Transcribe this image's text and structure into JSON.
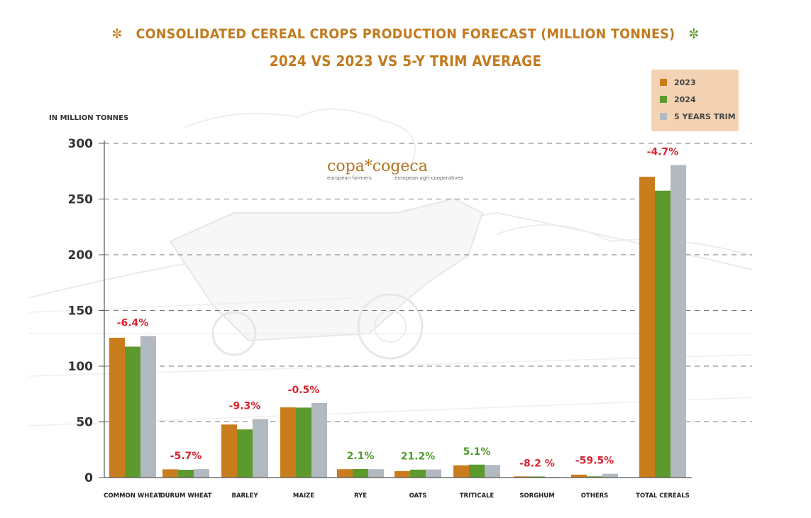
{
  "header": {
    "title_line1": "CONSOLIDATED CEREAL CROPS PRODUCTION FORECAST (MILLION TONNES)",
    "title_line2": "2024 VS 2023 VS 5-Y TRIM AVERAGE"
  },
  "logo": {
    "word1": "copa",
    "word2": "cogeca",
    "sub1": "european farmers",
    "sub2": "european agri-cooperatives"
  },
  "colors": {
    "y2023": "#c97c1c",
    "y2024": "#5c9a2e",
    "trim": "#b3b9c0",
    "negative": "#d8242f",
    "positive": "#4f9c2c",
    "title": "#c27a1e"
  },
  "chart_data": {
    "type": "bar",
    "ylabel": "IN MILLION TONNES",
    "ylim": [
      0,
      300
    ],
    "yticks": [
      0,
      50,
      100,
      150,
      200,
      250,
      300
    ],
    "grid": true,
    "legend_position": "top-right",
    "categories": [
      "COMMON WHEAT",
      "DURUM WHEAT",
      "BARLEY",
      "MAIZE",
      "RYE",
      "OATS",
      "TRITICALE",
      "SORGHUM",
      "OTHERS",
      "TOTAL CEREALS"
    ],
    "series": [
      {
        "name": "2023",
        "values": [
          125.5,
          7.4,
          47.6,
          63.0,
          7.5,
          5.8,
          11.0,
          1.1,
          2.6,
          270.0
        ]
      },
      {
        "name": "2024",
        "values": [
          117.5,
          7.0,
          43.2,
          62.8,
          7.7,
          7.1,
          11.6,
          1.0,
          1.1,
          257.5
        ]
      },
      {
        "name": "5 YEARS TRIM",
        "values": [
          127.0,
          7.6,
          52.5,
          67.0,
          7.5,
          7.3,
          11.3,
          0.6,
          3.4,
          280.5
        ]
      }
    ],
    "annotations": [
      "-6.4%",
      "-5.7%",
      "-9.3%",
      "-0.5%",
      "2.1%",
      "21.2%",
      "5.1%",
      "-8.2 %",
      "-59.5%",
      "-4.7%"
    ],
    "annotation_signs": [
      "neg",
      "neg",
      "neg",
      "neg",
      "pos",
      "pos",
      "pos",
      "neg",
      "neg",
      "neg"
    ]
  }
}
